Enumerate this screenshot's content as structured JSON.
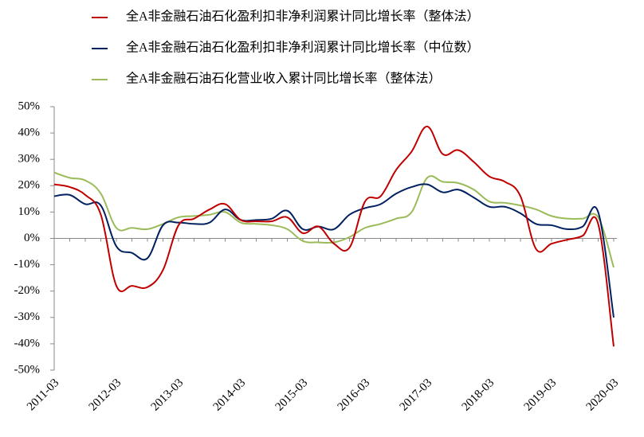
{
  "chart_data": {
    "type": "line",
    "categories": [
      "2011-03",
      null,
      null,
      null,
      "2012-03",
      null,
      null,
      null,
      "2013-03",
      null,
      null,
      null,
      "2014-03",
      null,
      null,
      null,
      "2015-03",
      null,
      null,
      null,
      "2016-03",
      null,
      null,
      null,
      "2017-03",
      null,
      null,
      null,
      "2018-03",
      null,
      null,
      null,
      "2019-03",
      null,
      null,
      null,
      "2020-03"
    ],
    "series": [
      {
        "name": "全A非金融石油石化盈利扣非净利润累计同比增长率（整体法）",
        "color": "#c00000",
        "values": [
          20.5,
          19.5,
          16.5,
          9,
          -18,
          -18,
          -18.5,
          -12,
          5,
          7.5,
          11,
          13,
          7,
          6.5,
          6.5,
          8,
          2,
          4.5,
          -2,
          -3.5,
          14,
          16,
          26,
          33,
          42.5,
          32,
          33.5,
          29,
          23.5,
          21.5,
          16,
          -4,
          -2,
          -0.5,
          1,
          5.5,
          -41
        ]
      },
      {
        "name": "全A非金融石油石化盈利扣非净利润累计同比增长率（中位数）",
        "color": "#002060",
        "values": [
          16,
          16.5,
          13,
          12.5,
          -3,
          -5.5,
          -7.5,
          5,
          6,
          5.5,
          6,
          11,
          7,
          7,
          7.5,
          10.5,
          3.5,
          4.5,
          3.5,
          9,
          11.5,
          13,
          17,
          19.5,
          20.5,
          17.5,
          18.5,
          15.5,
          12,
          12,
          9.5,
          5.5,
          5,
          3.5,
          4.5,
          10,
          -30
        ]
      },
      {
        "name": "全A非金融石油石化营业收入累计同比增长率（整体法）",
        "color": "#9bbb59",
        "values": [
          25,
          23,
          22,
          17,
          4,
          4,
          3.5,
          5.5,
          8,
          8.5,
          9,
          10,
          6,
          5.5,
          5,
          3.5,
          -1,
          -1.5,
          -1.5,
          0.5,
          4,
          5.5,
          7.5,
          10,
          23,
          21.5,
          21,
          18.5,
          14,
          13.5,
          12.5,
          11,
          8.5,
          7.5,
          7.5,
          8,
          -11
        ]
      }
    ],
    "ylim": [
      -50,
      50
    ],
    "yticks": [
      {
        "value": -50,
        "label": "-50%"
      },
      {
        "value": -40,
        "label": "-40%"
      },
      {
        "value": -30,
        "label": "-30%"
      },
      {
        "value": -20,
        "label": "-20%"
      },
      {
        "value": -10,
        "label": "-10%"
      },
      {
        "value": 0,
        "label": "0%"
      },
      {
        "value": 10,
        "label": "10%"
      },
      {
        "value": 20,
        "label": "20%"
      },
      {
        "value": 30,
        "label": "30%"
      },
      {
        "value": 40,
        "label": "40%"
      },
      {
        "value": 50,
        "label": "50%"
      }
    ]
  }
}
